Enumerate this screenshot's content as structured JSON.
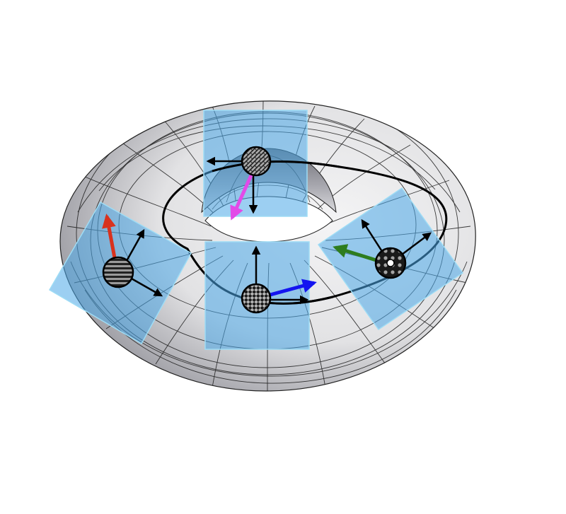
{
  "colors": {
    "background": "#ffffff",
    "torus_light": "#f4f4f5",
    "torus_mid": "#d4d4d8",
    "torus_dark": "#8a8a92",
    "mesh_line": "#1a1a1a",
    "path": "#000000",
    "plane_fill": "#4aa8e8",
    "plane_edge": "#9edcf5",
    "arrow_black": "#000000",
    "arrow_red": "#d8321e",
    "arrow_magenta": "#e24ae8",
    "arrow_blue": "#1414f0",
    "arrow_green": "#2e7d1e"
  },
  "particles": [
    {
      "id": "top",
      "pattern": "woven",
      "highlight_arrow": "magenta"
    },
    {
      "id": "left",
      "pattern": "horizontal-stripes",
      "highlight_arrow": "red"
    },
    {
      "id": "front",
      "pattern": "checkerboard",
      "highlight_arrow": "blue"
    },
    {
      "id": "right",
      "pattern": "dots",
      "highlight_arrow": "green"
    }
  ]
}
